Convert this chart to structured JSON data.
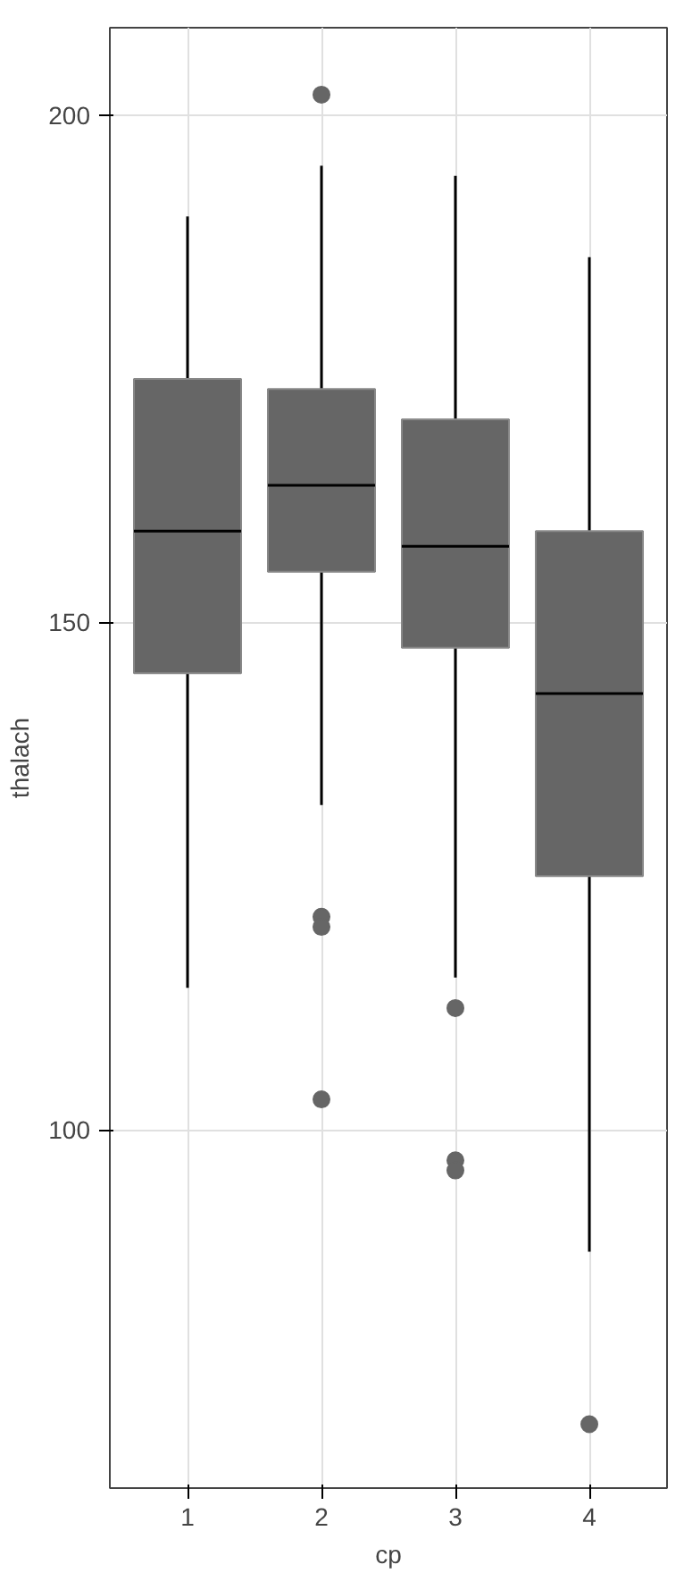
{
  "chart_data": {
    "type": "box",
    "xlabel": "cp",
    "ylabel": "thalach",
    "categories": [
      "1",
      "2",
      "3",
      "4"
    ],
    "color": "#666666",
    "boxes": [
      {
        "low": 114,
        "q1": 145,
        "median": 159,
        "q3": 174,
        "high": 190
      },
      {
        "low": 132,
        "q1": 155,
        "median": 163.5,
        "q3": 173,
        "high": 195,
        "outliers": [
          202,
          121,
          120,
          103
        ]
      },
      {
        "low": 115,
        "q1": 147.5,
        "median": 157.5,
        "q3": 170,
        "high": 194,
        "outliers": [
          112,
          97,
          96
        ]
      },
      {
        "low": 88,
        "q1": 125,
        "median": 143,
        "q3": 159,
        "high": 186,
        "outliers": [
          71
        ]
      }
    ],
    "ylim": [
      64.7,
      208.6
    ],
    "yticks": [
      100,
      150,
      200
    ],
    "grid": true
  }
}
